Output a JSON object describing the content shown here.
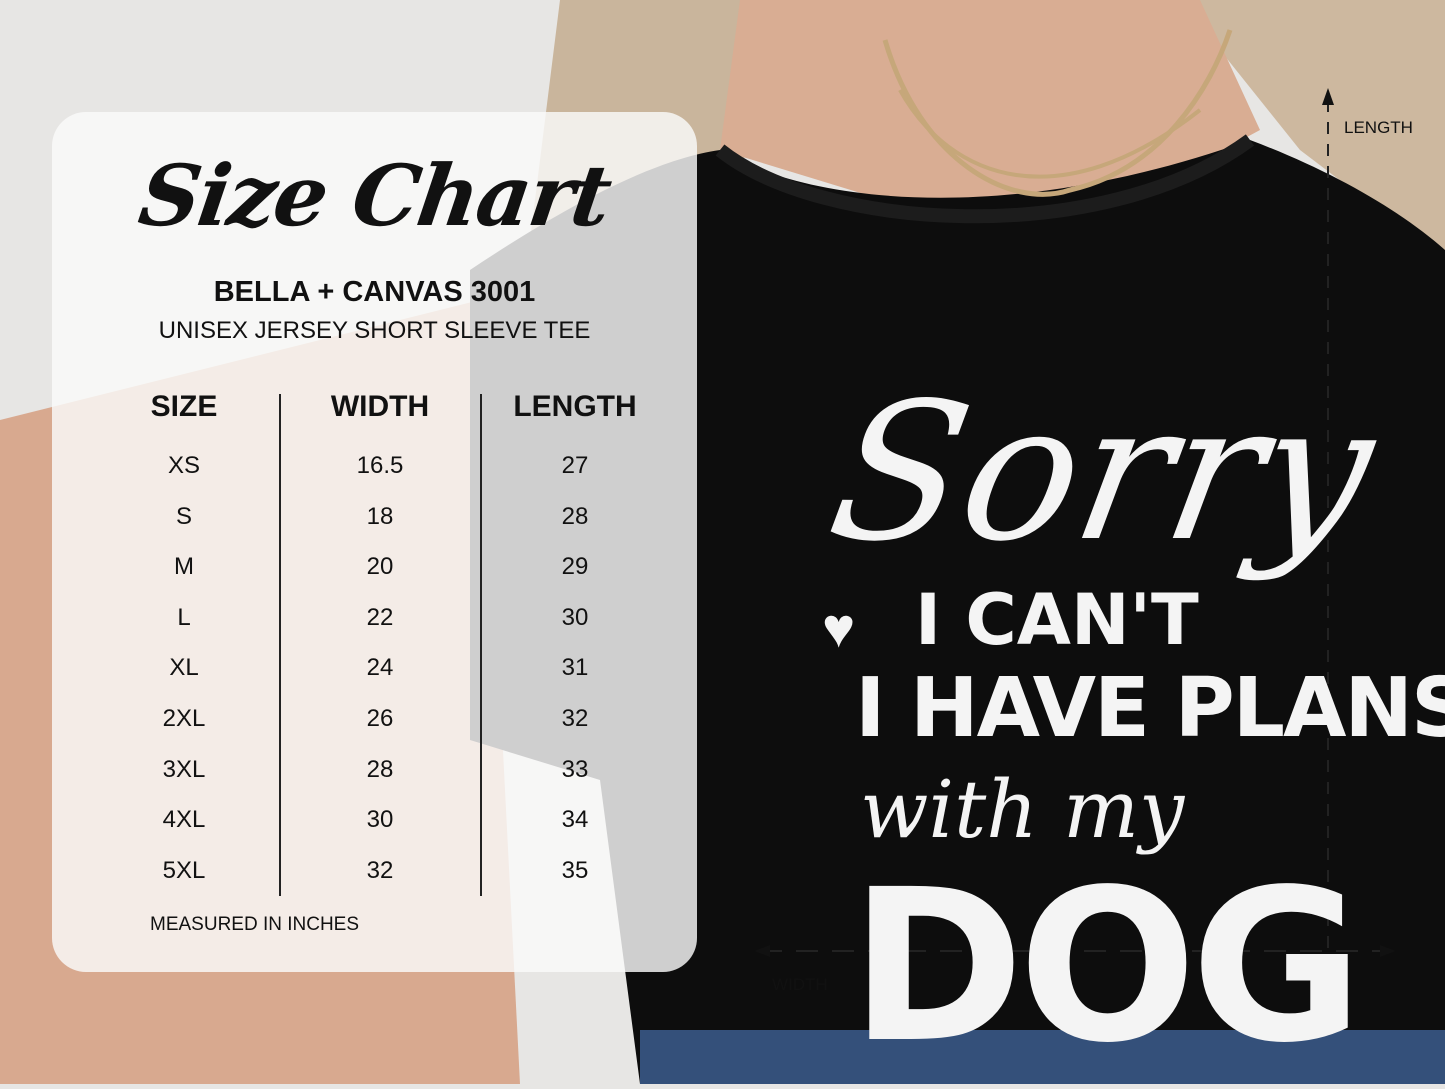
{
  "size_chart": {
    "title": "Size Chart",
    "brand": "BELLA + CANVAS 3001",
    "subtitle": "UNISEX JERSEY SHORT SLEEVE TEE",
    "columns": [
      "SIZE",
      "WIDTH",
      "LENGTH"
    ],
    "sizes": [
      "XS",
      "S",
      "M",
      "L",
      "XL",
      "2XL",
      "3XL",
      "4XL",
      "5XL"
    ],
    "widths": [
      "16.5",
      "18",
      "20",
      "22",
      "24",
      "26",
      "28",
      "30",
      "32"
    ],
    "lengths": [
      "27",
      "28",
      "29",
      "30",
      "31",
      "32",
      "33",
      "34",
      "35"
    ],
    "note": "MEASURED IN INCHES"
  },
  "shirt_print": {
    "line1": "Sorry",
    "line2": "I CAN'T",
    "line3": "I HAVE PLANS",
    "line4": "with my",
    "line5": "DOG",
    "icon": "heart-paw-icon"
  },
  "dimensions": {
    "length_label": "LENGTH",
    "width_label": "WIDTH"
  },
  "colors": {
    "shirt": "#0d0d0d",
    "print": "#f4f4f4",
    "panel": "#fafafa"
  }
}
